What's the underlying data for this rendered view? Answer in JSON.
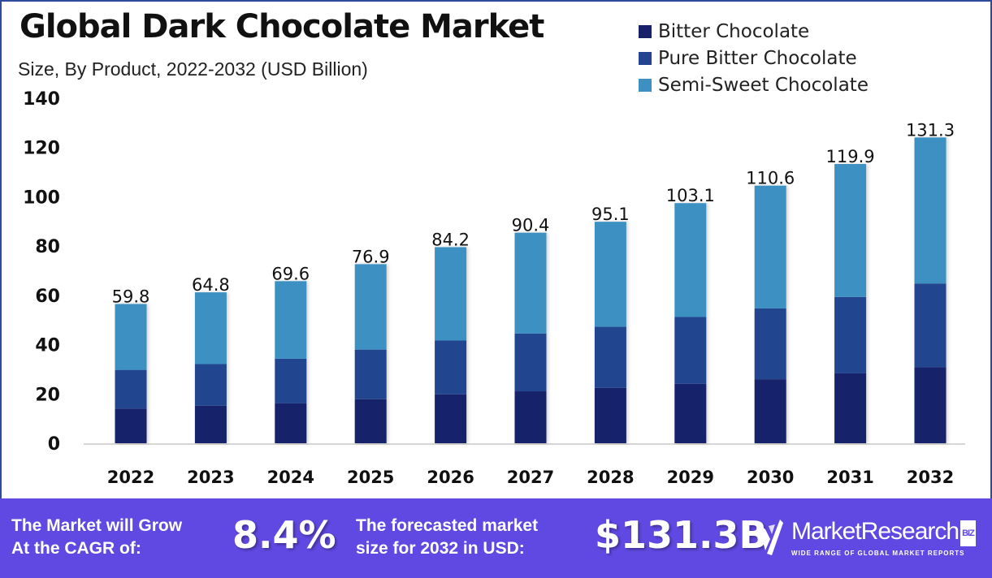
{
  "header": {
    "title": "Global Dark Chocolate Market",
    "subtitle": "Size, By Product, 2022-2032 (USD Billion)"
  },
  "colors": {
    "bitter": "#18206a",
    "pure_bitter": "#24448f",
    "semi_sweet": "#3e90c2",
    "footer_bg": "#6049e3",
    "frame": "#2e4a9a"
  },
  "legend": [
    {
      "label": "Bitter Chocolate",
      "color": "#18206a"
    },
    {
      "label": "Pure Bitter Chocolate",
      "color": "#24448f"
    },
    {
      "label": "Semi-Sweet Chocolate",
      "color": "#3e90c2"
    }
  ],
  "chart_data": {
    "type": "bar",
    "stacked": true,
    "title": "Global Dark Chocolate Market",
    "subtitle": "Size, By Product, 2022-2032 (USD Billion)",
    "xlabel": "",
    "ylabel": "",
    "ylim": [
      0,
      140
    ],
    "yticks": [
      0,
      20,
      40,
      60,
      80,
      100,
      120,
      140
    ],
    "grid": false,
    "legend_position": "top-right",
    "categories": [
      "2022",
      "2023",
      "2024",
      "2025",
      "2026",
      "2027",
      "2028",
      "2029",
      "2030",
      "2031",
      "2032"
    ],
    "totals": [
      59.8,
      64.8,
      69.6,
      76.9,
      84.2,
      90.4,
      95.1,
      103.1,
      110.6,
      119.9,
      131.3
    ],
    "total_labels": [
      "59.8",
      "64.8",
      "69.6",
      "76.9",
      "84.2",
      "90.4",
      "95.1",
      "103.1",
      "110.6",
      "119.9",
      "131.3"
    ],
    "series": [
      {
        "name": "Bitter Chocolate",
        "values": [
          14.9,
          16.1,
          17.1,
          18.9,
          21.0,
          22.3,
          23.8,
          25.5,
          27.5,
          30.0,
          32.7
        ]
      },
      {
        "name": "Pure Bitter Chocolate",
        "values": [
          16.6,
          17.9,
          19.2,
          21.3,
          23.1,
          24.8,
          26.2,
          28.7,
          30.4,
          32.8,
          35.9
        ]
      },
      {
        "name": "Semi-Sweet Chocolate",
        "values": [
          28.3,
          30.8,
          33.3,
          36.7,
          40.1,
          43.3,
          45.1,
          48.9,
          52.7,
          57.1,
          62.7
        ]
      }
    ]
  },
  "footer": {
    "cagr_text_line1": "The Market will Grow",
    "cagr_text_line2": "At the CAGR of:",
    "cagr_value": "8.4%",
    "forecast_text_line1": "The forecasted market",
    "forecast_text_line2": "size for 2032 in USD:",
    "forecast_value": "$131.3B",
    "logo_name": "MarketResearch",
    "logo_badge": "BIZ",
    "logo_tagline": "WIDE RANGE OF GLOBAL MARKET REPORTS"
  }
}
